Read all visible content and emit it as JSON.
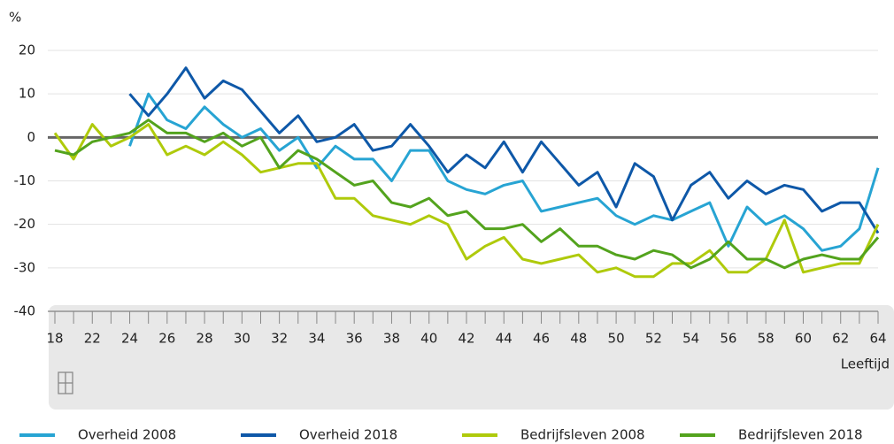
{
  "chart_data": {
    "type": "line",
    "y_unit": "%",
    "x_label": "Leeftijd",
    "categories": [
      "18",
      null,
      "22",
      null,
      "24",
      null,
      "26",
      null,
      "28",
      null,
      "30",
      null,
      "32",
      null,
      "34",
      null,
      "36",
      null,
      "38",
      null,
      "40",
      null,
      "42",
      null,
      "44",
      null,
      "46",
      null,
      "48",
      null,
      "50",
      null,
      "52",
      null,
      "54",
      null,
      "56",
      null,
      "58",
      null,
      "60",
      null,
      "62",
      null,
      "64"
    ],
    "ylim": [
      -40,
      20
    ],
    "yticks": [
      20,
      10,
      0,
      -10,
      -20,
      -30,
      -40
    ],
    "grid": true,
    "series": [
      {
        "name": "Overheid 2008",
        "color": "#27a4d3",
        "values": [
          null,
          null,
          null,
          null,
          -2,
          10,
          4,
          2,
          7,
          3,
          0,
          2,
          -3,
          0,
          -7,
          -2,
          -5,
          -5,
          -10,
          -3,
          -3,
          -10,
          -12,
          -13,
          -11,
          -10,
          -17,
          -16,
          -15,
          -14,
          -18,
          -20,
          -18,
          -19,
          -17,
          -15,
          -25,
          -16,
          -20,
          -18,
          -21,
          -26,
          -25,
          -21,
          -7
        ]
      },
      {
        "name": "Overheid 2018",
        "color": "#0e58a8",
        "values": [
          null,
          null,
          null,
          null,
          10,
          5,
          10,
          16,
          9,
          13,
          11,
          6,
          1,
          5,
          -1,
          0,
          3,
          -3,
          -2,
          3,
          -2,
          -8,
          -4,
          -7,
          -1,
          -8,
          -1,
          -6,
          -11,
          -8,
          -16,
          -6,
          -9,
          -19,
          -11,
          -8,
          -14,
          -10,
          -13,
          -11,
          -12,
          -17,
          -15,
          -15,
          -22
        ]
      },
      {
        "name": "Bedrijfsleven 2008",
        "color": "#afca0b",
        "values": [
          1,
          -5,
          3,
          -2,
          0,
          3,
          -4,
          -2,
          -4,
          -1,
          -4,
          -8,
          -7,
          -6,
          -6,
          -14,
          -14,
          -18,
          -19,
          -20,
          -18,
          -20,
          -28,
          -25,
          -23,
          -28,
          -29,
          -28,
          -27,
          -31,
          -30,
          -32,
          -32,
          -29,
          -29,
          -26,
          -31,
          -31,
          -28,
          -19,
          -31,
          -30,
          -29,
          -29,
          -20
        ]
      },
      {
        "name": "Bedrijfsleven 2018",
        "color": "#53a31d",
        "values": [
          -3,
          -4,
          -1,
          0,
          1,
          4,
          1,
          1,
          -1,
          1,
          -2,
          0,
          -7,
          -3,
          -5,
          -8,
          -11,
          -10,
          -15,
          -16,
          -14,
          -18,
          -17,
          -21,
          -21,
          -20,
          -24,
          -21,
          -25,
          -25,
          -27,
          -28,
          -26,
          -27,
          -30,
          -28,
          -24,
          -28,
          -28,
          -30,
          -28,
          -27,
          -28,
          -28,
          -23
        ]
      }
    ]
  }
}
